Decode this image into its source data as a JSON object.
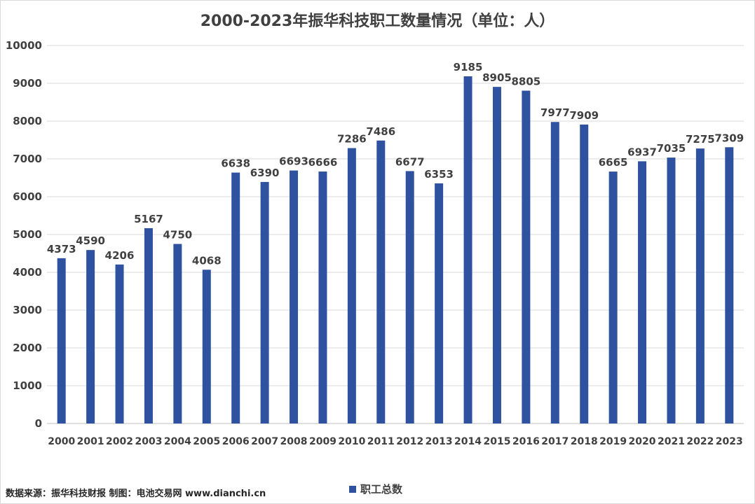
{
  "chart_data": {
    "type": "bar",
    "title": "2000-2023年振华科技职工数量情况（单位：人）",
    "categories": [
      "2000",
      "2001",
      "2002",
      "2003",
      "2004",
      "2005",
      "2006",
      "2007",
      "2008",
      "2009",
      "2010",
      "2011",
      "2012",
      "2013",
      "2014",
      "2015",
      "2016",
      "2017",
      "2018",
      "2019",
      "2020",
      "2021",
      "2022",
      "2023"
    ],
    "series": [
      {
        "name": "职工总数",
        "color": "#2f52a0",
        "values": [
          4373,
          4590,
          4206,
          5167,
          4750,
          4068,
          6638,
          6390,
          6693,
          6666,
          7286,
          7486,
          6677,
          6353,
          9185,
          8905,
          8805,
          7977,
          7909,
          6665,
          6937,
          7035,
          7275,
          7309
        ]
      }
    ],
    "ylim": [
      0,
      10000
    ],
    "yticks": [
      0,
      1000,
      2000,
      3000,
      4000,
      5000,
      6000,
      7000,
      8000,
      9000,
      10000
    ],
    "grid": true,
    "legend_position": "bottom",
    "xlabel": "",
    "ylabel": ""
  },
  "source_note": "数据来源：振华科技财报  制图：电池交易网 www.dianchi.cn"
}
